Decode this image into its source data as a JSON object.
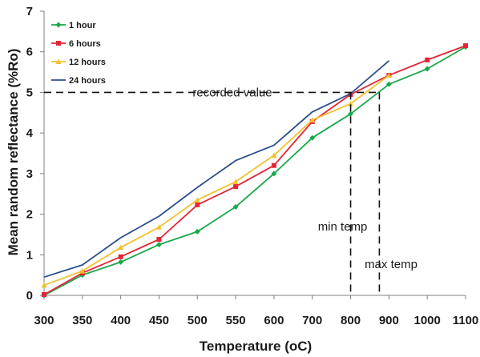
{
  "chart_data": {
    "type": "line",
    "title": "",
    "xlabel": "Temperature (oC)",
    "ylabel": "Mean random reflectance (%Ro)",
    "categories": [
      "300",
      "350",
      "400",
      "450",
      "500",
      "550",
      "600",
      "700",
      "800",
      "900",
      "1000",
      "1100"
    ],
    "ylim": [
      0,
      7
    ],
    "yticks": [
      "0",
      "1",
      "2",
      "3",
      "4",
      "5",
      "6",
      "7"
    ],
    "grid": false,
    "legend_position": "top-left",
    "series": [
      {
        "name": "1 hour",
        "color": "#1aa84a",
        "marker": "diamond",
        "values": [
          0.0,
          0.5,
          0.82,
          1.25,
          1.57,
          2.18,
          3.0,
          3.88,
          4.47,
          5.2,
          5.58,
          6.12
        ]
      },
      {
        "name": "6 hours",
        "color": "#e32636",
        "marker": "square",
        "values": [
          0.02,
          0.55,
          0.95,
          1.38,
          2.23,
          2.68,
          3.2,
          4.28,
          4.95,
          5.42,
          5.8,
          6.15
        ]
      },
      {
        "name": "12 hours",
        "color": "#f2c12e",
        "marker": "triangle",
        "values": [
          0.25,
          0.6,
          1.18,
          1.68,
          2.35,
          2.8,
          3.45,
          4.32,
          4.72,
          5.42,
          null,
          null
        ]
      },
      {
        "name": "24 hours",
        "color": "#2b4d8c",
        "marker": "none",
        "values": [
          0.45,
          0.75,
          1.42,
          1.95,
          2.66,
          3.32,
          3.7,
          4.52,
          4.97,
          5.78,
          null,
          null
        ]
      }
    ],
    "annotations": {
      "recorded_value": {
        "text": "recorded value",
        "y": 5
      },
      "min_temp": {
        "text": "min temp",
        "x": "800"
      },
      "max_temp": {
        "text": "max temp",
        "x_between": [
          "800",
          "900"
        ],
        "x_fraction": 0.75
      }
    }
  }
}
